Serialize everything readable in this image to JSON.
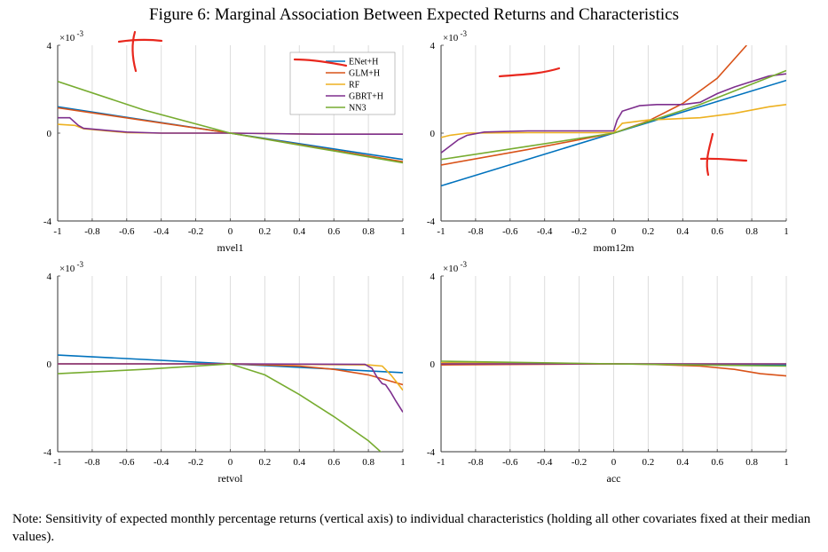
{
  "figure": {
    "title": "Figure 6: Marginal Association Between Expected Returns and Characteristics",
    "note": "Note: Sensitivity of expected monthly percentage returns (vertical axis) to individual characteristics (holding all other covariates fixed at their median values)."
  },
  "colors": {
    "ENet+H": "#0072bd",
    "GLM+H": "#d95319",
    "RF": "#edb120",
    "GBRT+H": "#7e2f8e",
    "NN3": "#77ac30",
    "grid": "#dddddd",
    "annotation": "#e8271d"
  },
  "chart_data": [
    {
      "type": "line",
      "xlabel": "mvel1",
      "exponent_label": "×10",
      "exponent": "-3",
      "xlim": [
        -1,
        1
      ],
      "ylim": [
        -4,
        4
      ],
      "xticks": [
        "-1",
        "-0.8",
        "-0.6",
        "-0.4",
        "-0.2",
        "0",
        "0.2",
        "0.4",
        "0.6",
        "0.8",
        "1"
      ],
      "yticks": [
        "4",
        "0",
        "-4"
      ],
      "grid": true,
      "legend": "top-right",
      "series": [
        {
          "name": "ENet+H",
          "x": [
            -1,
            0,
            1
          ],
          "y": [
            1.2,
            0,
            -1.2
          ]
        },
        {
          "name": "GLM+H",
          "x": [
            -1,
            0,
            1
          ],
          "y": [
            1.15,
            0,
            -1.3
          ]
        },
        {
          "name": "RF",
          "x": [
            -1,
            -0.9,
            -0.85,
            -0.6,
            -0.4,
            0,
            0.5,
            1
          ],
          "y": [
            0.4,
            0.35,
            0.2,
            0.02,
            0,
            0,
            -0.05,
            -0.05
          ]
        },
        {
          "name": "GBRT+H",
          "x": [
            -1,
            -0.93,
            -0.88,
            -0.85,
            -0.6,
            -0.4,
            0,
            0.5,
            1
          ],
          "y": [
            0.7,
            0.7,
            0.35,
            0.22,
            0.05,
            0.0,
            0,
            -0.05,
            -0.05
          ]
        },
        {
          "name": "NN3",
          "x": [
            -1,
            -0.5,
            0,
            0.5,
            1
          ],
          "y": [
            2.35,
            1.05,
            0,
            -0.68,
            -1.35
          ]
        }
      ]
    },
    {
      "type": "line",
      "xlabel": "mom12m",
      "exponent_label": "×10",
      "exponent": "-3",
      "xlim": [
        -1,
        1
      ],
      "ylim": [
        -4,
        4
      ],
      "xticks": [
        "-1",
        "-0.8",
        "-0.6",
        "-0.4",
        "-0.2",
        "0",
        "0.2",
        "0.4",
        "0.6",
        "0.8",
        "1"
      ],
      "yticks": [
        "4",
        "0",
        "-4"
      ],
      "grid": true,
      "series": [
        {
          "name": "ENet+H",
          "x": [
            -1,
            0,
            1
          ],
          "y": [
            -2.4,
            0,
            2.4
          ]
        },
        {
          "name": "GLM+H",
          "x": [
            -1,
            -0.5,
            0,
            0.2,
            0.4,
            0.6,
            0.77
          ],
          "y": [
            -1.45,
            -0.75,
            0,
            0.55,
            1.35,
            2.5,
            4.0
          ]
        },
        {
          "name": "RF",
          "x": [
            -1,
            -0.95,
            -0.85,
            -0.5,
            0,
            0.05,
            0.2,
            0.5,
            0.7,
            0.9,
            1
          ],
          "y": [
            -0.2,
            -0.1,
            0,
            0.02,
            0.02,
            0.45,
            0.6,
            0.7,
            0.9,
            1.2,
            1.3
          ]
        },
        {
          "name": "GBRT+H",
          "x": [
            -1,
            -0.95,
            -0.9,
            -0.85,
            -0.75,
            -0.5,
            0,
            0.02,
            0.05,
            0.15,
            0.25,
            0.4,
            0.5,
            0.6,
            0.7,
            0.8,
            0.9,
            1
          ],
          "y": [
            -0.9,
            -0.6,
            -0.3,
            -0.1,
            0.05,
            0.1,
            0.1,
            0.6,
            1.0,
            1.25,
            1.3,
            1.3,
            1.4,
            1.8,
            2.1,
            2.35,
            2.6,
            2.7
          ]
        },
        {
          "name": "NN3",
          "x": [
            -1,
            -0.5,
            0,
            0.5,
            1
          ],
          "y": [
            -1.2,
            -0.6,
            0,
            1.3,
            2.85
          ]
        }
      ]
    },
    {
      "type": "line",
      "xlabel": "retvol",
      "exponent_label": "×10",
      "exponent": "-3",
      "xlim": [
        -1,
        1
      ],
      "ylim": [
        -4,
        4
      ],
      "xticks": [
        "-1",
        "-0.8",
        "-0.6",
        "-0.4",
        "-0.2",
        "0",
        "0.2",
        "0.4",
        "0.6",
        "0.8",
        "1"
      ],
      "yticks": [
        "4",
        "0",
        "-4"
      ],
      "grid": true,
      "series": [
        {
          "name": "ENet+H",
          "x": [
            -1,
            0,
            1
          ],
          "y": [
            0.4,
            0,
            -0.4
          ]
        },
        {
          "name": "GLM+H",
          "x": [
            -1,
            0,
            0.4,
            0.6,
            0.8,
            1
          ],
          "y": [
            0,
            0,
            -0.1,
            -0.25,
            -0.5,
            -0.95
          ]
        },
        {
          "name": "RF",
          "x": [
            -1,
            0,
            0.8,
            0.88,
            0.93,
            0.97,
            1
          ],
          "y": [
            0,
            0,
            -0.05,
            -0.1,
            -0.5,
            -0.9,
            -1.2
          ]
        },
        {
          "name": "GBRT+H",
          "x": [
            -1,
            0,
            0.78,
            0.82,
            0.85,
            0.88,
            0.9,
            0.93,
            0.96,
            1
          ],
          "y": [
            0,
            0,
            -0.02,
            -0.2,
            -0.6,
            -0.9,
            -0.95,
            -1.3,
            -1.7,
            -2.2
          ]
        },
        {
          "name": "NN3",
          "x": [
            -1,
            -0.5,
            0,
            0.2,
            0.4,
            0.6,
            0.8,
            0.9
          ],
          "y": [
            -0.45,
            -0.25,
            0,
            -0.5,
            -1.4,
            -2.4,
            -3.5,
            -4.2
          ]
        }
      ]
    },
    {
      "type": "line",
      "xlabel": "acc",
      "exponent_label": "×10",
      "exponent": "-3",
      "xlim": [
        -1,
        1
      ],
      "ylim": [
        -4,
        4
      ],
      "xticks": [
        "-1",
        "-0.8",
        "-0.6",
        "-0.4",
        "-0.2",
        "0",
        "0.2",
        "0.4",
        "0.6",
        "0.8",
        "1"
      ],
      "yticks": [
        "4",
        "0",
        "-4"
      ],
      "grid": true,
      "series": [
        {
          "name": "ENet+H",
          "x": [
            -1,
            0,
            1
          ],
          "y": [
            0.05,
            0,
            -0.05
          ]
        },
        {
          "name": "GLM+H",
          "x": [
            -1,
            0,
            0.2,
            0.5,
            0.7,
            0.85,
            1
          ],
          "y": [
            -0.05,
            0,
            -0.02,
            -0.1,
            -0.25,
            -0.45,
            -0.55
          ]
        },
        {
          "name": "RF",
          "x": [
            -1,
            0,
            1
          ],
          "y": [
            0.05,
            0,
            0
          ]
        },
        {
          "name": "GBRT+H",
          "x": [
            -1,
            0,
            1
          ],
          "y": [
            0,
            0,
            0
          ]
        },
        {
          "name": "NN3",
          "x": [
            -1,
            0,
            1
          ],
          "y": [
            0.12,
            0,
            -0.1
          ]
        }
      ]
    }
  ]
}
